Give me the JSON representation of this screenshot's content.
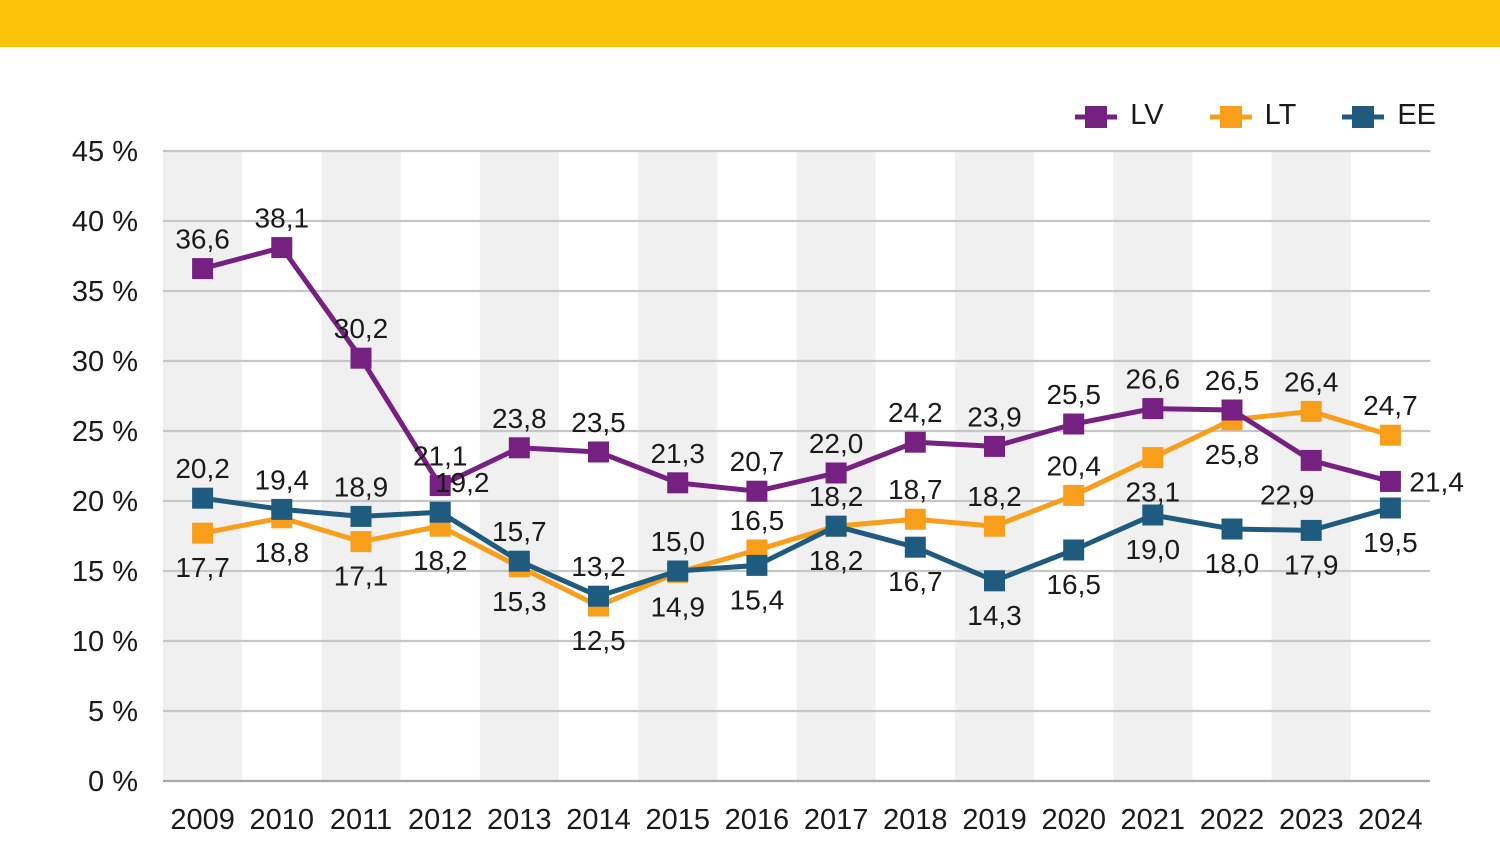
{
  "page": {
    "top_bar_color": "#FCC30B",
    "background_color": "#FFFFFF"
  },
  "legend": {
    "position": "top-right",
    "items": [
      {
        "label": "LV",
        "color": "#762181"
      },
      {
        "label": "LT",
        "color": "#F89E1B"
      },
      {
        "label": "EE",
        "color": "#1F5B7F"
      }
    ]
  },
  "chart_data": {
    "type": "line",
    "title": "",
    "xlabel": "",
    "ylabel": "",
    "x": [
      "2009",
      "2010",
      "2011",
      "2012",
      "2013",
      "2014",
      "2015",
      "2016",
      "2017",
      "2018",
      "2019",
      "2020",
      "2021",
      "2022",
      "2023",
      "2024"
    ],
    "ylim": [
      0,
      45
    ],
    "ytick_step": 5,
    "y_tick_labels": [
      "0 %",
      "5 %",
      "10 %",
      "15 %",
      "20 %",
      "25 %",
      "30 %",
      "35 %",
      "40 %",
      "45 %"
    ],
    "grid": "horizontal gridlines on, alternating vertical shading bands (odd columns light gray)",
    "legend_position": "top-right",
    "decimal_separator": ",",
    "marker": "square",
    "series": [
      {
        "name": "LV",
        "color": "#762181",
        "values": [
          36.6,
          38.1,
          30.2,
          21.1,
          23.8,
          23.5,
          21.3,
          20.7,
          22.0,
          24.2,
          23.9,
          25.5,
          26.6,
          26.5,
          22.9,
          21.4
        ],
        "label_pos": [
          "above",
          "above",
          "above",
          "above",
          "above",
          "above",
          "above",
          "above",
          "above",
          "above",
          "above",
          "above",
          "above",
          "above",
          "below_left",
          "right"
        ]
      },
      {
        "name": "LT",
        "color": "#F89E1B",
        "values": [
          17.7,
          18.8,
          17.1,
          18.2,
          15.3,
          12.5,
          14.9,
          16.5,
          18.2,
          18.7,
          18.2,
          20.4,
          23.1,
          25.8,
          26.4,
          24.7
        ],
        "label_pos": [
          "below",
          "below",
          "below",
          "below",
          "below",
          "below",
          "below",
          "above",
          "above",
          "above",
          "above",
          "above",
          "below",
          "below",
          "above",
          "above"
        ]
      },
      {
        "name": "EE",
        "color": "#1F5B7F",
        "values": [
          20.2,
          19.4,
          18.9,
          19.2,
          15.7,
          13.2,
          15.0,
          15.4,
          18.2,
          16.7,
          14.3,
          16.5,
          19.0,
          18.0,
          17.9,
          19.5
        ],
        "label_pos": [
          "above",
          "above",
          "above",
          "above_right",
          "above",
          "above",
          "above",
          "below",
          "below",
          "below",
          "below",
          "below",
          "below",
          "below",
          "below",
          "below"
        ]
      }
    ],
    "styles": {
      "band_color": "#F0F0F0",
      "gridline_color": "#C6C6C6",
      "baseline_color": "#A8A8A8",
      "tick_text_color": "#1A1A1A",
      "data_label_color": "#1A1A1A"
    }
  }
}
